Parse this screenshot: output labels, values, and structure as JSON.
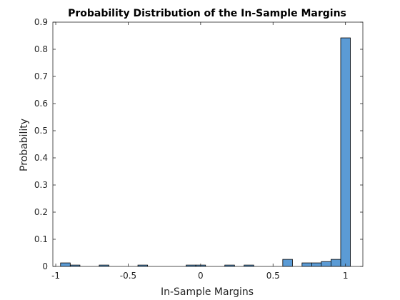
{
  "chart_data": {
    "type": "bar",
    "title": "Probability Distribution of the In-Sample Margins",
    "xlabel": "In-Sample Margins",
    "ylabel": "Probability",
    "xlim": [
      -1.02,
      1.12
    ],
    "ylim": [
      0,
      0.9
    ],
    "xticks": [
      -1,
      -0.5,
      0,
      0.5,
      1
    ],
    "xtick_labels": [
      "-1",
      "-0.5",
      "0",
      "0.5",
      "1"
    ],
    "yticks": [
      0,
      0.1,
      0.2,
      0.3,
      0.4,
      0.5,
      0.6,
      0.7,
      0.8,
      0.9
    ],
    "ytick_labels": [
      "0",
      "0.1",
      "0.2",
      "0.3",
      "0.4",
      "0.5",
      "0.6",
      "0.7",
      "0.8",
      "0.9"
    ],
    "bin_width": 0.067,
    "bins": [
      {
        "x0": -0.967,
        "value": 0.013
      },
      {
        "x0": -0.9,
        "value": 0.005
      },
      {
        "x0": -0.7,
        "value": 0.005
      },
      {
        "x0": -0.433,
        "value": 0.005
      },
      {
        "x0": -0.1,
        "value": 0.005
      },
      {
        "x0": -0.033,
        "value": 0.005
      },
      {
        "x0": 0.167,
        "value": 0.005
      },
      {
        "x0": 0.3,
        "value": 0.005
      },
      {
        "x0": 0.567,
        "value": 0.026
      },
      {
        "x0": 0.7,
        "value": 0.013
      },
      {
        "x0": 0.767,
        "value": 0.013
      },
      {
        "x0": 0.833,
        "value": 0.018
      },
      {
        "x0": 0.9,
        "value": 0.026
      },
      {
        "x0": 0.967,
        "value": 0.842
      }
    ],
    "bar_color": "#5b9bd5",
    "edge_color": "#000000",
    "grid": false,
    "box": true
  }
}
